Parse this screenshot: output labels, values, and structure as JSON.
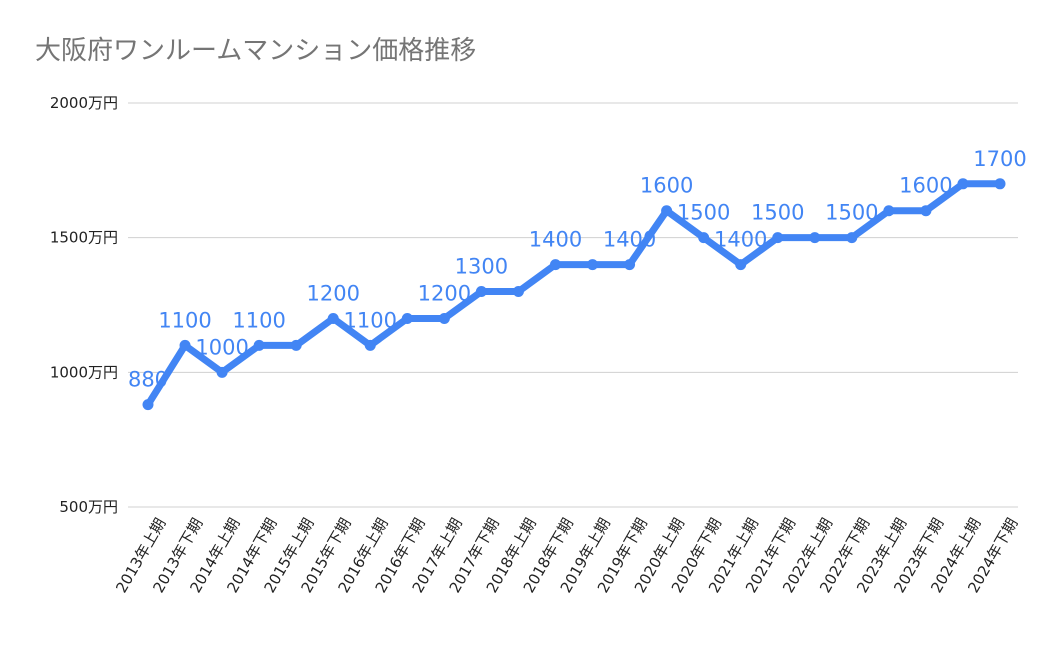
{
  "title": "大阪府ワンルームマンション価格推移",
  "colors": {
    "line": "#4285f4",
    "title": "#757575",
    "grid": "#d0d0d0",
    "tick": "#222222"
  },
  "chart_data": {
    "type": "line",
    "title": "大阪府ワンルームマンション価格推移",
    "xlabel": "",
    "ylabel": "",
    "unit": "万円",
    "ylim": [
      500,
      2000
    ],
    "yticks": [
      500,
      1000,
      1500,
      2000
    ],
    "ytick_labels": [
      "500万円",
      "1000万円",
      "1500万円",
      "2000万円"
    ],
    "grid": true,
    "categories": [
      "2013年上期",
      "2013年下期",
      "2014年上期",
      "2014年下期",
      "2015年上期",
      "2015年下期",
      "2016年上期",
      "2016年下期",
      "2017年上期",
      "2017年下期",
      "2018年上期",
      "2018年下期",
      "2019年上期",
      "2019年下期",
      "2020年上期",
      "2020年下期",
      "2021年上期",
      "2021年下期",
      "2022年上期",
      "2022年下期",
      "2023年上期",
      "2023年下期",
      "2024年上期",
      "2024年下期"
    ],
    "series": [
      {
        "color": "#4285f4",
        "values": [
          880,
          1100,
          1000,
          1100,
          1100,
          1200,
          1100,
          1200,
          1200,
          1300,
          1300,
          1400,
          1400,
          1400,
          1600,
          1500,
          1400,
          1500,
          1500,
          1500,
          1600,
          1600,
          1700,
          1700
        ]
      }
    ],
    "data_labels": [
      "880",
      "1100",
      "1000",
      "1100",
      null,
      "1200",
      "1100",
      null,
      "1200",
      "1300",
      null,
      "1400",
      null,
      "1400",
      "1600",
      "1500",
      "1400",
      "1500",
      null,
      "1500",
      null,
      "1600",
      null,
      "1700"
    ]
  }
}
